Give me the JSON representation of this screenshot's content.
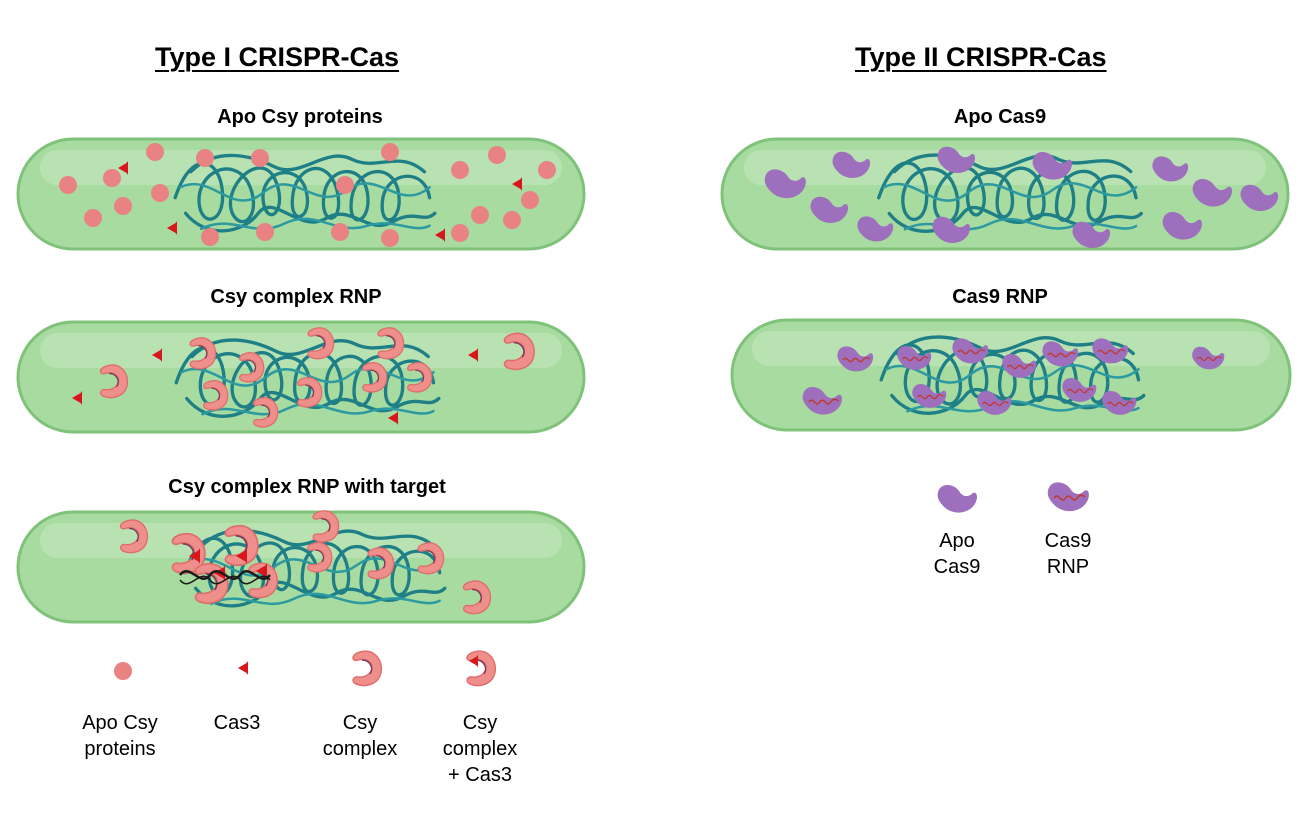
{
  "type1": {
    "heading": "Type I CRISPR-Cas",
    "panels": [
      "Apo Csy proteins",
      "Csy complex RNP",
      "Csy complex RNP with target"
    ],
    "legend": [
      {
        "lines": [
          "Apo Csy",
          "proteins"
        ]
      },
      {
        "lines": [
          "Cas3"
        ]
      },
      {
        "lines": [
          "Csy",
          "complex"
        ]
      },
      {
        "lines": [
          "Csy",
          "complex",
          "+ Cas3"
        ]
      }
    ]
  },
  "type2": {
    "heading": "Type II CRISPR-Cas",
    "panels": [
      "Apo Cas9",
      "Cas9 RNP"
    ],
    "legend": [
      {
        "lines": [
          "Apo",
          "Cas9"
        ]
      },
      {
        "lines": [
          "Cas9",
          "RNP"
        ]
      }
    ]
  },
  "colors": {
    "cell_fill": "#a8dba0",
    "cell_stroke": "#7fc27a",
    "dna": "#1f7f86",
    "csy_protein": "#e98283",
    "cas3": "#d8161c",
    "csy_complex": "#ef8f8c",
    "cas9": "#9e6fbd",
    "rna": "#c0392b"
  }
}
